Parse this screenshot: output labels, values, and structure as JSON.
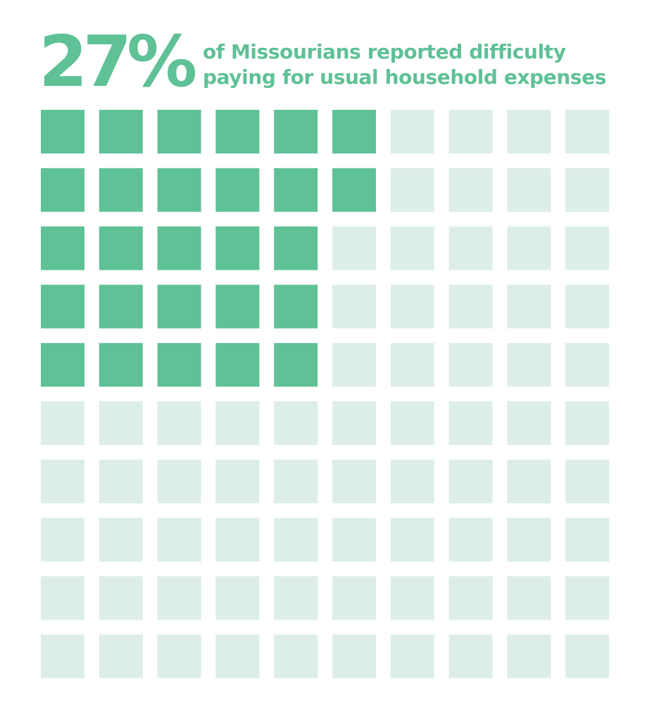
{
  "headline": {
    "value": "27%",
    "caption_line1": "of Missourians reported difficulty",
    "caption_line2": "paying for usual household expenses"
  },
  "colors": {
    "accent": "#5fc196",
    "empty": "#ddeee6",
    "background": "#ffffff"
  },
  "chart_data": {
    "type": "waffle",
    "total": 100,
    "rows": 10,
    "columns": 10,
    "filled_count": 27,
    "filled_per_row": [
      6,
      6,
      5,
      5,
      5,
      0,
      0,
      0,
      0,
      0
    ],
    "value_percent": 27,
    "fill_order": "rows from top, left to right within each row"
  }
}
